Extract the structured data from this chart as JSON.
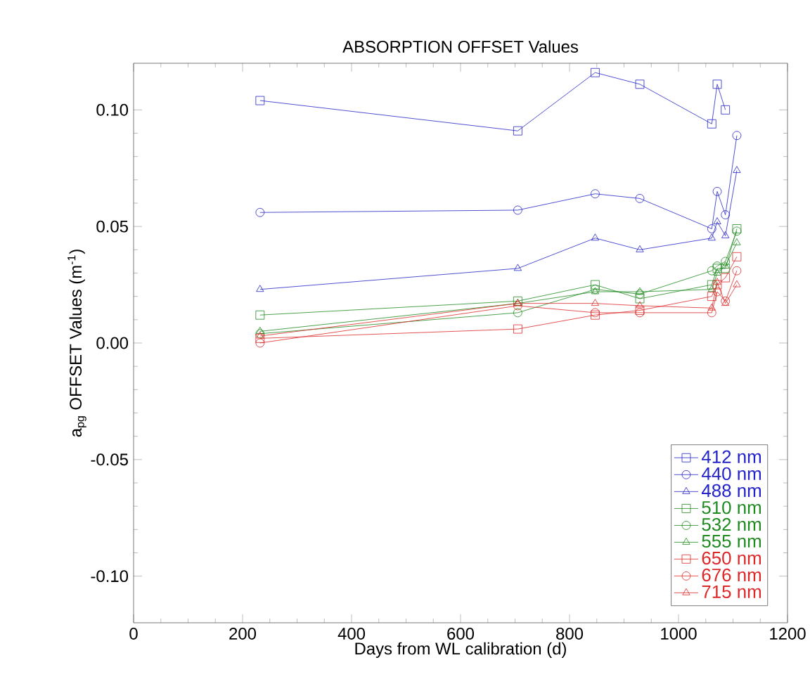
{
  "chart_data": {
    "type": "line",
    "title": "ABSORPTION OFFSET Values",
    "xlabel": "Days from WL calibration (d)",
    "ylabel": "a$_{pg}$ OFFSET Values (m$^{-1}$)",
    "x": [
      232,
      705,
      847,
      929,
      1061,
      1071,
      1086,
      1107
    ],
    "series": [
      {
        "name": "412 nm",
        "color": "#2424c8",
        "marker": "square",
        "values": [
          0.104,
          0.091,
          0.116,
          0.111,
          0.094,
          0.111,
          0.1,
          null
        ]
      },
      {
        "name": "440 nm",
        "color": "#2424c8",
        "marker": "circle",
        "values": [
          0.056,
          0.057,
          0.064,
          0.062,
          0.049,
          0.065,
          0.055,
          0.089
        ]
      },
      {
        "name": "488 nm",
        "color": "#2424c8",
        "marker": "triangle",
        "values": [
          0.023,
          0.032,
          0.045,
          0.04,
          0.045,
          0.052,
          0.046,
          0.074
        ]
      },
      {
        "name": "510 nm",
        "color": "#1f8a1f",
        "marker": "square",
        "values": [
          0.012,
          0.018,
          0.025,
          0.019,
          0.025,
          0.032,
          0.032,
          0.049
        ]
      },
      {
        "name": "532 nm",
        "color": "#1f8a1f",
        "marker": "circle",
        "values": [
          0.004,
          0.013,
          0.023,
          0.021,
          0.031,
          0.033,
          0.035,
          0.048
        ]
      },
      {
        "name": "555 nm",
        "color": "#1f8a1f",
        "marker": "triangle",
        "values": [
          0.005,
          0.017,
          0.022,
          0.022,
          0.023,
          0.03,
          0.033,
          0.043
        ]
      },
      {
        "name": "650 nm",
        "color": "#dc2828",
        "marker": "square",
        "values": [
          0.002,
          0.006,
          0.012,
          0.014,
          0.02,
          0.025,
          0.028,
          0.037
        ]
      },
      {
        "name": "676 nm",
        "color": "#dc2828",
        "marker": "circle",
        "values": [
          0.0,
          0.016,
          0.013,
          0.013,
          0.013,
          0.022,
          0.018,
          0.031
        ]
      },
      {
        "name": "715 nm",
        "color": "#dc2828",
        "marker": "triangle",
        "values": [
          0.003,
          0.017,
          0.017,
          0.016,
          0.015,
          0.026,
          0.017,
          0.025
        ]
      }
    ],
    "xlim": [
      0,
      1200
    ],
    "ylim": [
      -0.12,
      0.12
    ],
    "xticks": [
      0,
      200,
      400,
      600,
      800,
      1000,
      1200
    ],
    "yticks": [
      {
        "value": -0.1,
        "label": "-0.10"
      },
      {
        "value": -0.05,
        "label": "-0.05"
      },
      {
        "value": 0,
        "label": "0.00"
      },
      {
        "value": 0.05,
        "label": "0.05"
      },
      {
        "value": 0.1,
        "label": "0.10"
      }
    ],
    "legend": "bottom right",
    "line_style": "solid"
  }
}
